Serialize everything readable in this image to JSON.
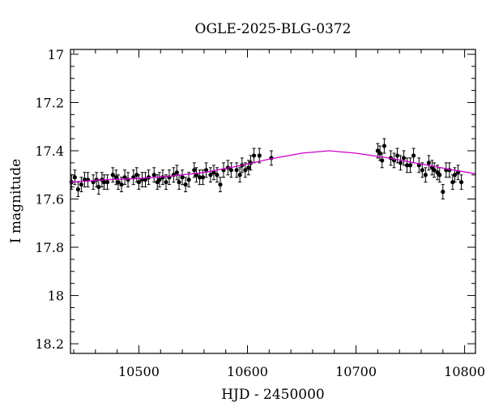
{
  "chart_data": {
    "type": "scatter",
    "title": "OGLE-2025-BLG-0372",
    "xlabel": "HJD - 2450000",
    "ylabel": "I magnitude",
    "xlim": [
      10437,
      10810
    ],
    "ylim": [
      18.24,
      16.98
    ],
    "y_inverted": true,
    "x_ticks": [
      10500,
      10600,
      10700,
      10800
    ],
    "y_ticks": [
      17,
      17.2,
      17.4,
      17.6,
      17.8,
      18,
      18.2
    ],
    "x_tick_labels": [
      "10500",
      "10600",
      "10700",
      "10800"
    ],
    "y_tick_labels": [
      "17",
      "17.2",
      "17.4",
      "17.6",
      "17.8",
      "18",
      "18.2"
    ],
    "grid": false,
    "series": [
      {
        "kind": "points_with_errorbars",
        "color": "#000000",
        "x": [
          10438,
          10441,
          10444,
          10447,
          10450,
          10453,
          10458,
          10461,
          10463,
          10466,
          10468,
          10471,
          10476,
          10479,
          10481,
          10484,
          10487,
          10490,
          10495,
          10498,
          10500,
          10503,
          10506,
          10509,
          10514,
          10517,
          10519,
          10522,
          10525,
          10528,
          10532,
          10535,
          10537,
          10540,
          10543,
          10546,
          10551,
          10553,
          10556,
          10559,
          10562,
          10566,
          10569,
          10572,
          10575,
          10578,
          10582,
          10585,
          10590,
          10593,
          10595,
          10598,
          10601,
          10603,
          10606,
          10611,
          10622,
          10720,
          10722,
          10724,
          10726,
          10732,
          10735,
          10738,
          10741,
          10744,
          10747,
          10750,
          10753,
          10758,
          10761,
          10764,
          10767,
          10770,
          10772,
          10775,
          10777,
          10780,
          10783,
          10786,
          10789,
          10791,
          10794,
          10797
        ],
        "y": [
          17.53,
          17.51,
          17.56,
          17.54,
          17.52,
          17.52,
          17.53,
          17.52,
          17.55,
          17.52,
          17.53,
          17.53,
          17.5,
          17.51,
          17.53,
          17.54,
          17.51,
          17.52,
          17.51,
          17.5,
          17.53,
          17.52,
          17.52,
          17.51,
          17.5,
          17.53,
          17.52,
          17.51,
          17.53,
          17.51,
          17.5,
          17.49,
          17.53,
          17.51,
          17.54,
          17.52,
          17.48,
          17.5,
          17.51,
          17.51,
          17.48,
          17.5,
          17.49,
          17.5,
          17.54,
          17.48,
          17.47,
          17.48,
          17.48,
          17.5,
          17.46,
          17.48,
          17.47,
          17.45,
          17.42,
          17.42,
          17.43,
          17.4,
          17.41,
          17.44,
          17.38,
          17.43,
          17.44,
          17.42,
          17.45,
          17.43,
          17.46,
          17.46,
          17.42,
          17.46,
          17.48,
          17.5,
          17.45,
          17.47,
          17.48,
          17.49,
          17.5,
          17.57,
          17.48,
          17.48,
          17.53,
          17.5,
          17.49,
          17.53
        ],
        "err": [
          0.03,
          0.03,
          0.03,
          0.03,
          0.03,
          0.03,
          0.03,
          0.03,
          0.03,
          0.03,
          0.03,
          0.03,
          0.03,
          0.03,
          0.03,
          0.03,
          0.03,
          0.03,
          0.03,
          0.03,
          0.03,
          0.03,
          0.03,
          0.03,
          0.03,
          0.03,
          0.03,
          0.03,
          0.03,
          0.03,
          0.03,
          0.03,
          0.03,
          0.03,
          0.03,
          0.03,
          0.03,
          0.03,
          0.03,
          0.03,
          0.03,
          0.03,
          0.03,
          0.03,
          0.03,
          0.03,
          0.03,
          0.03,
          0.03,
          0.03,
          0.03,
          0.03,
          0.03,
          0.03,
          0.03,
          0.03,
          0.03,
          0.03,
          0.03,
          0.03,
          0.03,
          0.03,
          0.03,
          0.03,
          0.03,
          0.03,
          0.03,
          0.03,
          0.03,
          0.03,
          0.03,
          0.03,
          0.03,
          0.03,
          0.03,
          0.03,
          0.03,
          0.03,
          0.03,
          0.03,
          0.03,
          0.03,
          0.03,
          0.03
        ]
      },
      {
        "kind": "model_curve",
        "color": "#cc00cc",
        "x": [
          10437,
          10470,
          10500,
          10530,
          10560,
          10590,
          10620,
          10650,
          10675,
          10700,
          10730,
          10760,
          10790,
          10810
        ],
        "y": [
          17.53,
          17.52,
          17.515,
          17.505,
          17.49,
          17.465,
          17.435,
          17.41,
          17.4,
          17.41,
          17.43,
          17.455,
          17.48,
          17.495
        ]
      }
    ]
  }
}
